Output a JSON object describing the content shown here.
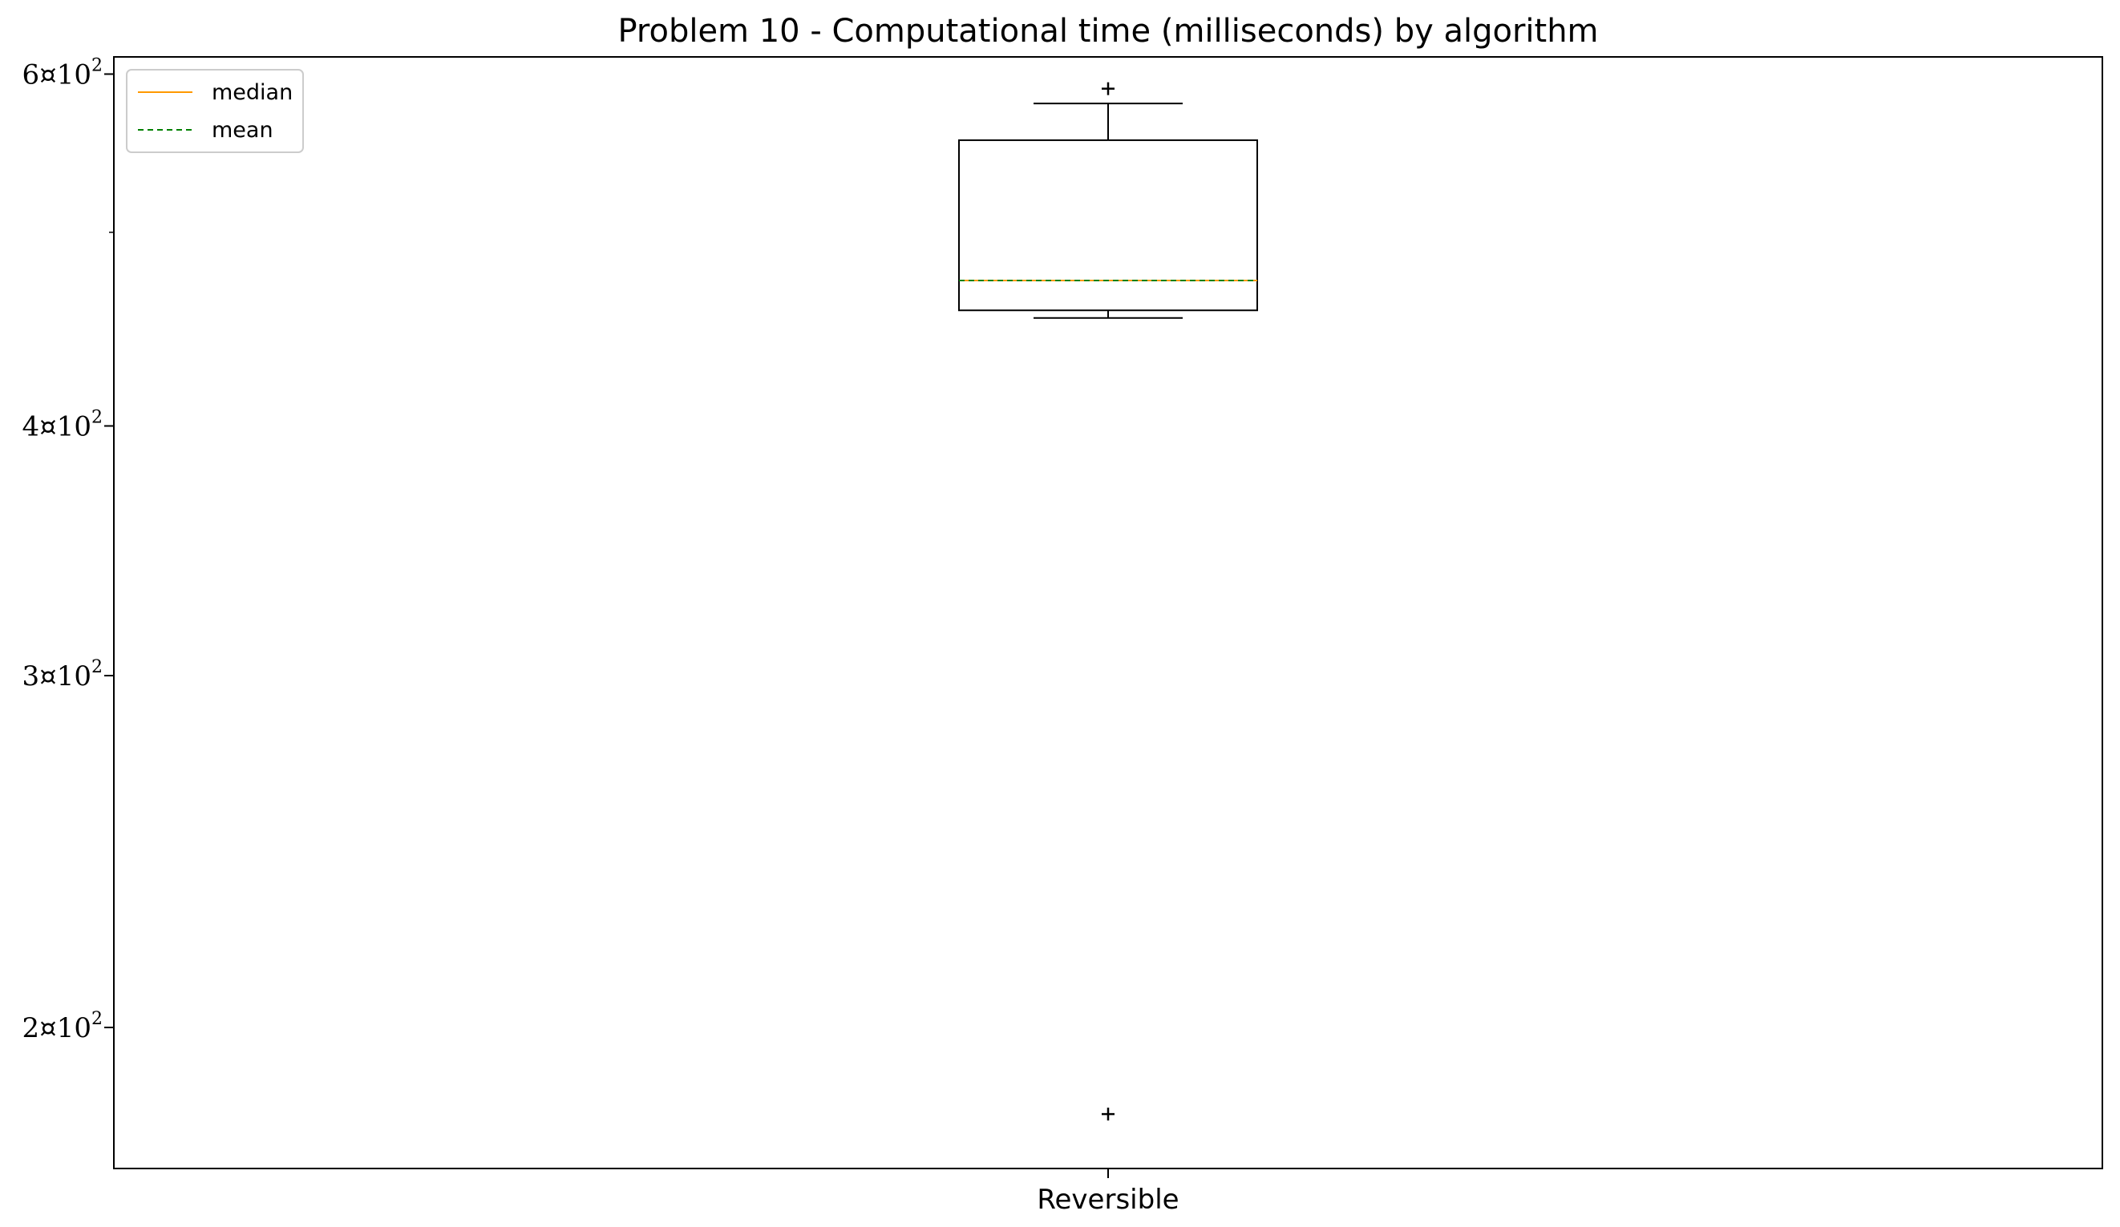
{
  "chart_data": {
    "type": "box",
    "title": "Problem 10 - Computational time (milliseconds) by algorithm",
    "xlabel": "",
    "ylabel": "",
    "y_scale": "log",
    "ylim": [
      170,
      612
    ],
    "y_ticks": [
      {
        "value": 200,
        "mantissa": "2",
        "sep": "¤",
        "base": "10",
        "exp": "2"
      },
      {
        "value": 300,
        "mantissa": "3",
        "sep": "¤",
        "base": "10",
        "exp": "2"
      },
      {
        "value": 400,
        "mantissa": "4",
        "sep": "¤",
        "base": "10",
        "exp": "2"
      },
      {
        "value": 600,
        "mantissa": "6",
        "sep": "¤",
        "base": "10",
        "exp": "2"
      }
    ],
    "y_minor_ticks": [
      500
    ],
    "categories": [
      "Reversible"
    ],
    "boxes": [
      {
        "name": "Reversible",
        "whisker_low": 453,
        "q1": 457,
        "median": 473,
        "mean": 473,
        "q3": 556,
        "whisker_high": 580,
        "outliers": [
          590,
          181
        ]
      }
    ],
    "legend": {
      "placement": "top-left",
      "entries": [
        {
          "label": "median",
          "color": "#ff9900",
          "style": "solid"
        },
        {
          "label": "mean",
          "color": "#008000",
          "style": "dashed"
        }
      ]
    },
    "colors": {
      "box": "#000000",
      "median": "#ff9900",
      "mean": "#008000"
    },
    "grid": false
  }
}
